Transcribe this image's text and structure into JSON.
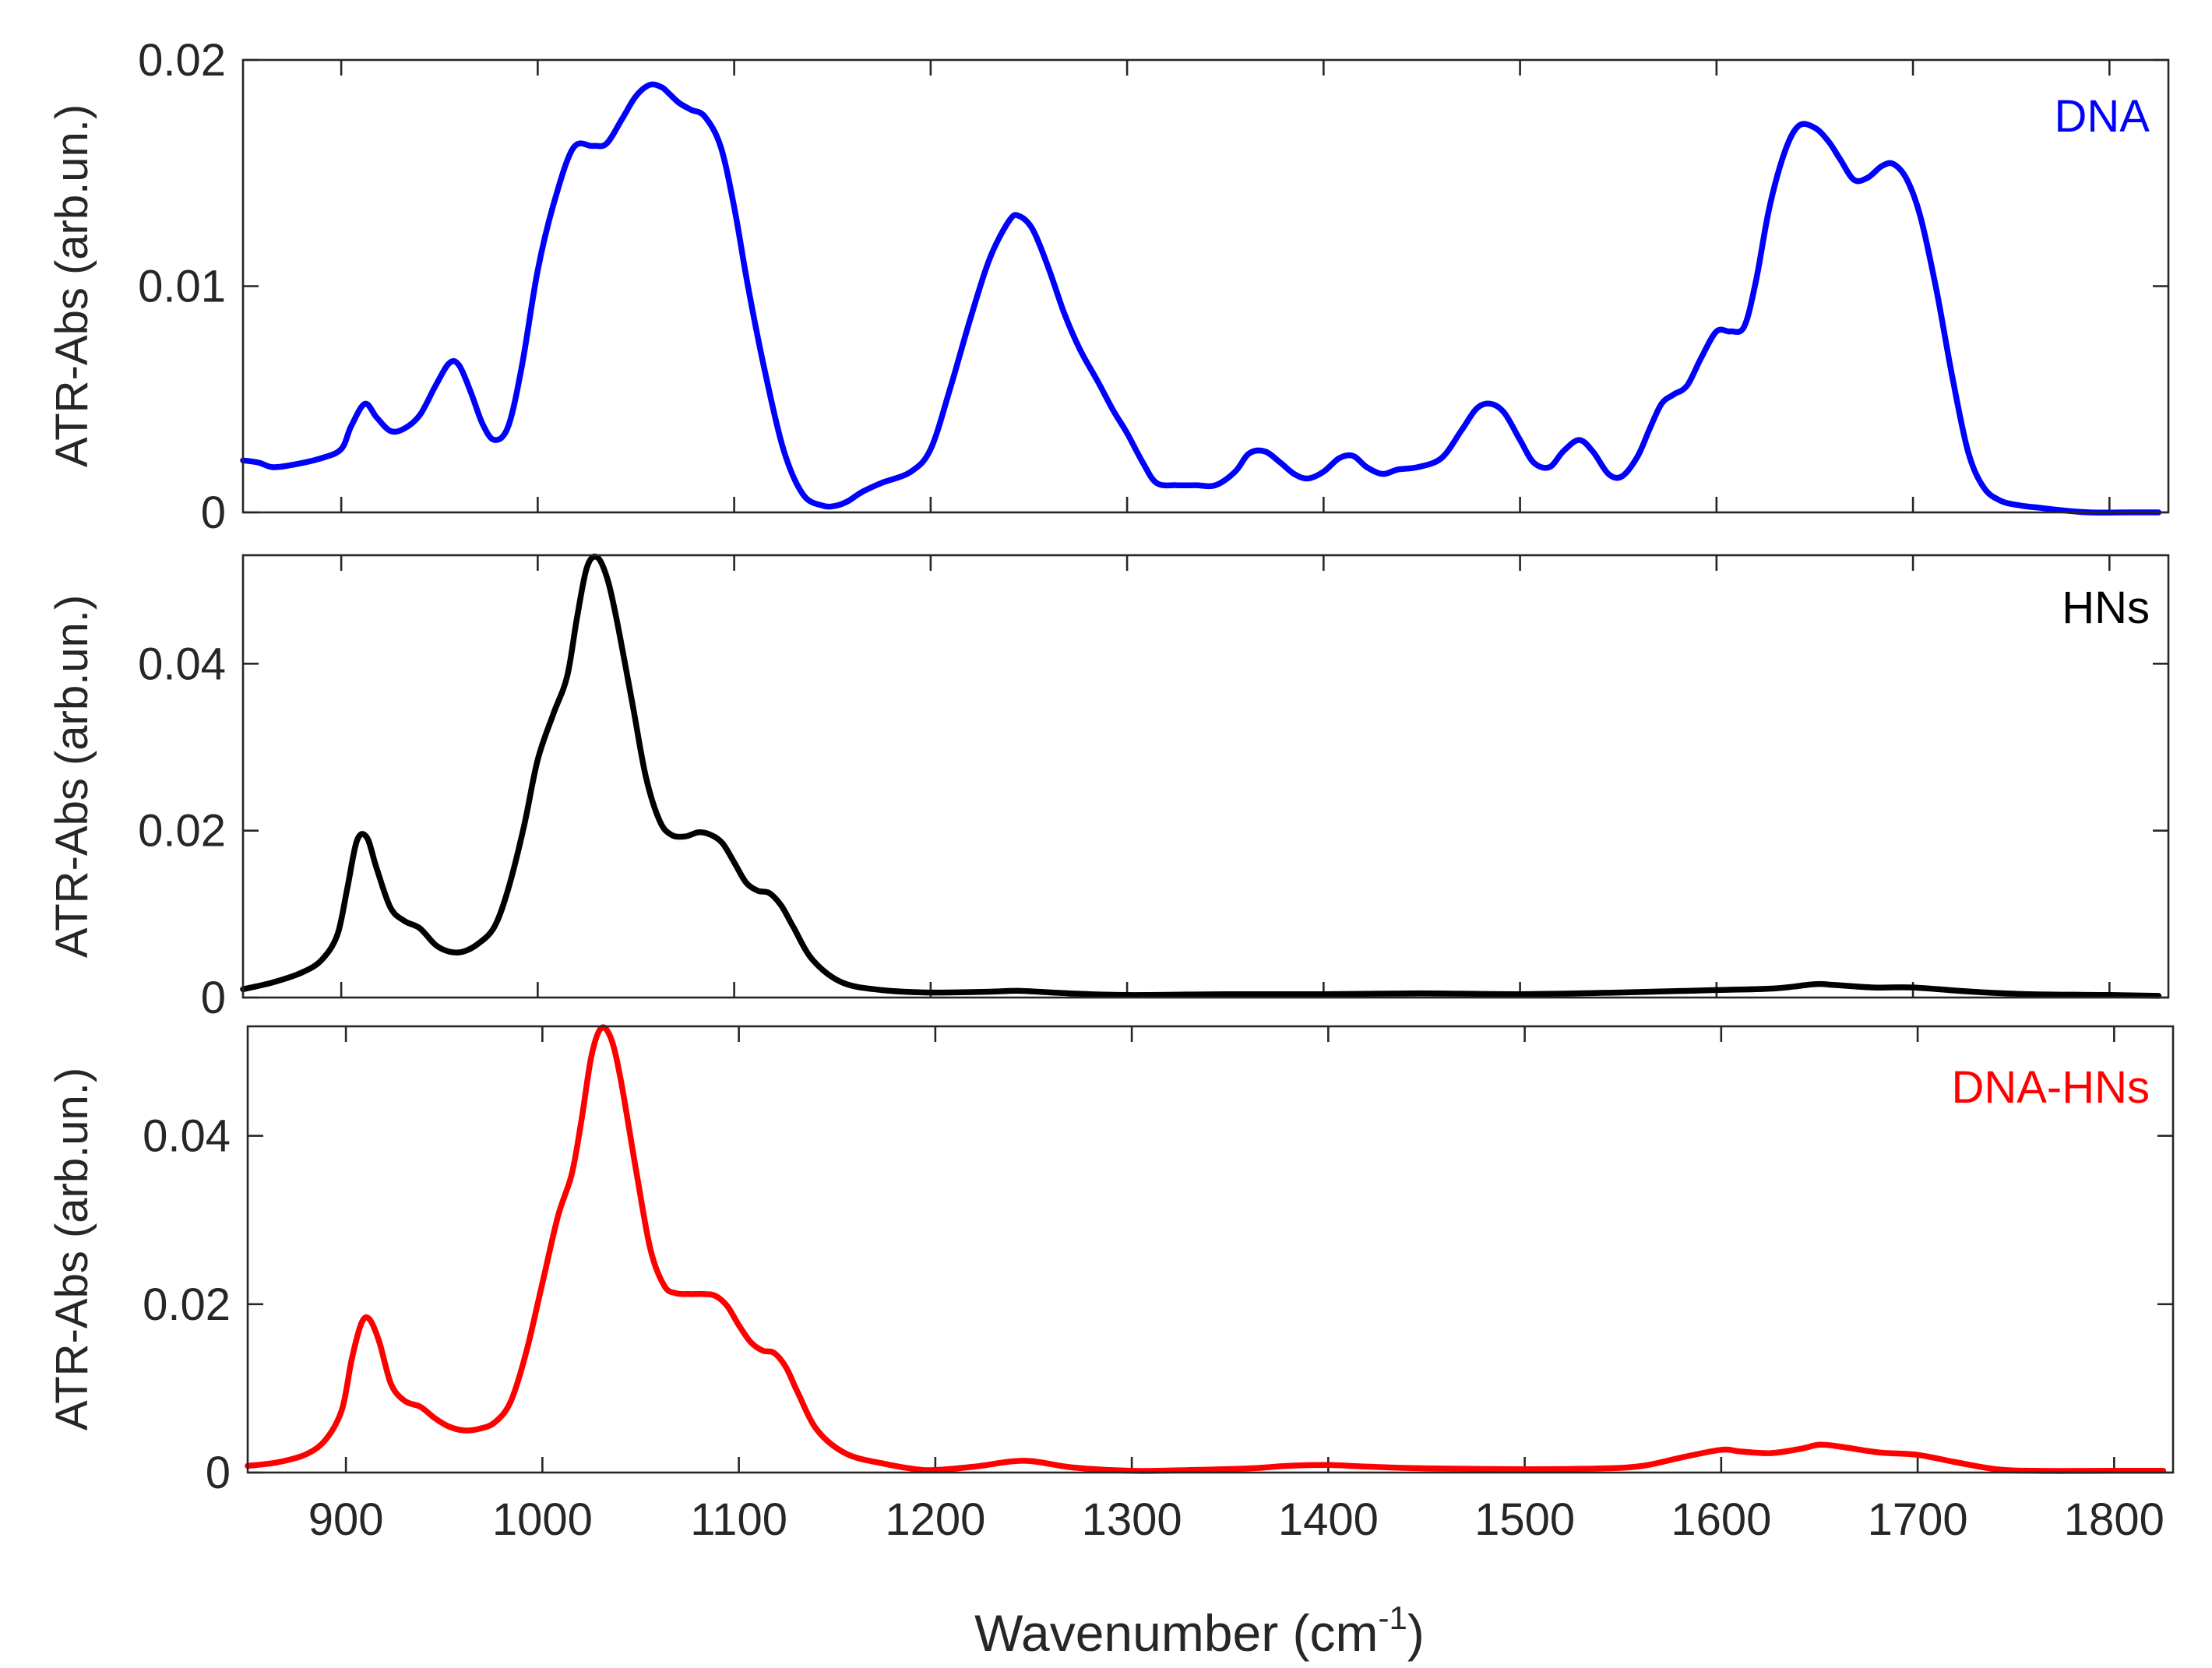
{
  "chart_data": {
    "type": "line",
    "layout": "3 vertically stacked panels sharing x-axis",
    "xlabel": "Wavenumber (cm",
    "xlabel_sup": "-1",
    "xlabel_close": ")",
    "xlim": [
      850,
      1830
    ],
    "xticks": [
      900,
      1000,
      1100,
      1200,
      1300,
      1400,
      1500,
      1600,
      1700,
      1800
    ],
    "xtick_labels": [
      "900",
      "1000",
      "1100",
      "1200",
      "1300",
      "1400",
      "1500",
      "1600",
      "1700",
      "1800"
    ],
    "panels": [
      {
        "name": "DNA",
        "legend": "DNA",
        "legend_placement": "top-right",
        "color": "#0000ff",
        "ylabel": "ATR-Abs (arb.un.)",
        "ylim": [
          0,
          0.02
        ],
        "yticks": [
          0,
          0.01,
          0.02
        ],
        "ytick_labels": [
          "0",
          "0.01",
          "0.02"
        ],
        "series": {
          "x": [
            850,
            858,
            865,
            875,
            890,
            900,
            905,
            912,
            918,
            925,
            932,
            940,
            948,
            955,
            960,
            966,
            972,
            978,
            985,
            992,
            1000,
            1008,
            1018,
            1028,
            1035,
            1043,
            1050,
            1057,
            1063,
            1067,
            1072,
            1078,
            1085,
            1093,
            1100,
            1107,
            1115,
            1125,
            1135,
            1145,
            1152,
            1158,
            1165,
            1175,
            1190,
            1200,
            1210,
            1220,
            1230,
            1240,
            1245,
            1252,
            1260,
            1268,
            1276,
            1285,
            1293,
            1300,
            1308,
            1315,
            1325,
            1335,
            1345,
            1355,
            1362,
            1370,
            1378,
            1385,
            1392,
            1400,
            1408,
            1415,
            1422,
            1430,
            1438,
            1448,
            1460,
            1470,
            1478,
            1485,
            1492,
            1500,
            1507,
            1515,
            1522,
            1530,
            1537,
            1545,
            1552,
            1560,
            1566,
            1572,
            1578,
            1585,
            1592,
            1600,
            1607,
            1614,
            1620,
            1627,
            1635,
            1642,
            1650,
            1657,
            1663,
            1670,
            1677,
            1684,
            1690,
            1697,
            1704,
            1712,
            1720,
            1728,
            1736,
            1745,
            1755,
            1765,
            1775,
            1790,
            1810,
            1825
          ],
          "y": [
            0.0023,
            0.0022,
            0.002,
            0.0021,
            0.0024,
            0.0028,
            0.0038,
            0.0048,
            0.0042,
            0.0036,
            0.0037,
            0.0043,
            0.0056,
            0.0066,
            0.0065,
            0.0053,
            0.0039,
            0.0032,
            0.0038,
            0.0065,
            0.0107,
            0.0136,
            0.0161,
            0.0162,
            0.0163,
            0.0174,
            0.0184,
            0.0189,
            0.0188,
            0.0185,
            0.0181,
            0.0178,
            0.0175,
            0.0162,
            0.0135,
            0.01,
            0.0065,
            0.0028,
            0.0008,
            0.0003,
            0.0003,
            0.0005,
            0.0009,
            0.0013,
            0.0018,
            0.0028,
            0.0055,
            0.0085,
            0.0112,
            0.0129,
            0.0131,
            0.0125,
            0.0108,
            0.0088,
            0.0072,
            0.0058,
            0.0045,
            0.0035,
            0.0022,
            0.0013,
            0.0012,
            0.0012,
            0.0012,
            0.0018,
            0.0026,
            0.0027,
            0.0022,
            0.0017,
            0.0015,
            0.0018,
            0.0024,
            0.0025,
            0.002,
            0.0017,
            0.0019,
            0.002,
            0.0024,
            0.0036,
            0.0046,
            0.0048,
            0.0044,
            0.0032,
            0.0022,
            0.002,
            0.0027,
            0.0032,
            0.0027,
            0.0017,
            0.0016,
            0.0025,
            0.0037,
            0.0048,
            0.0052,
            0.0056,
            0.0068,
            0.008,
            0.008,
            0.0082,
            0.0102,
            0.0135,
            0.016,
            0.0171,
            0.017,
            0.0164,
            0.0156,
            0.0147,
            0.0148,
            0.0153,
            0.0154,
            0.0147,
            0.013,
            0.0098,
            0.006,
            0.0027,
            0.0011,
            0.0005,
            0.0003,
            0.0002,
            0.0001,
            0.0,
            0.0,
            0.0
          ]
        }
      },
      {
        "name": "HNs",
        "legend": "HNs",
        "legend_placement": "top-right",
        "color": "#000000",
        "ylabel": "ATR-Abs (arb.un.)",
        "ylim": [
          0,
          0.053
        ],
        "yticks": [
          0,
          0.02,
          0.04
        ],
        "ytick_labels": [
          "0",
          "0.02",
          "0.04"
        ],
        "series": {
          "x": [
            850,
            865,
            880,
            890,
            898,
            903,
            908,
            913,
            918,
            925,
            932,
            940,
            948,
            955,
            962,
            970,
            978,
            985,
            993,
            1000,
            1008,
            1015,
            1020,
            1025,
            1030,
            1035,
            1040,
            1048,
            1055,
            1062,
            1068,
            1075,
            1082,
            1088,
            1094,
            1100,
            1106,
            1112,
            1118,
            1124,
            1130,
            1140,
            1155,
            1175,
            1200,
            1230,
            1245,
            1270,
            1300,
            1350,
            1400,
            1450,
            1500,
            1550,
            1600,
            1630,
            1650,
            1660,
            1680,
            1700,
            1730,
            1760,
            1800,
            1825
          ],
          "y": [
            0.001,
            0.0018,
            0.003,
            0.0045,
            0.0075,
            0.013,
            0.0188,
            0.0192,
            0.0155,
            0.0108,
            0.0092,
            0.0083,
            0.0063,
            0.0055,
            0.0055,
            0.0065,
            0.0085,
            0.013,
            0.0205,
            0.0285,
            0.034,
            0.0385,
            0.0455,
            0.0515,
            0.0528,
            0.0505,
            0.0455,
            0.0355,
            0.0265,
            0.0212,
            0.0195,
            0.0193,
            0.0198,
            0.0195,
            0.0185,
            0.0162,
            0.0138,
            0.0128,
            0.0125,
            0.011,
            0.0085,
            0.0045,
            0.0018,
            0.0009,
            0.0006,
            0.0007,
            0.0008,
            0.0005,
            0.0003,
            0.0004,
            0.0004,
            0.0005,
            0.0004,
            0.0006,
            0.0009,
            0.0011,
            0.0016,
            0.0015,
            0.0012,
            0.0012,
            0.0007,
            0.0004,
            0.0003,
            0.0002
          ]
        }
      },
      {
        "name": "DNA-HNs",
        "legend": "DNA-HNs",
        "legend_placement": "top-right",
        "color": "#ff0000",
        "ylabel": "ATR-Abs (arb.un.)",
        "ylim": [
          0,
          0.053
        ],
        "yticks": [
          0,
          0.02,
          0.04
        ],
        "ytick_labels": [
          "0",
          "0.02",
          "0.04"
        ],
        "series": {
          "x": [
            850,
            865,
            880,
            890,
            898,
            903,
            908,
            912,
            917,
            923,
            930,
            938,
            945,
            952,
            960,
            968,
            976,
            984,
            992,
            1000,
            1008,
            1015,
            1020,
            1025,
            1030,
            1035,
            1040,
            1048,
            1055,
            1062,
            1068,
            1075,
            1082,
            1088,
            1094,
            1100,
            1106,
            1112,
            1118,
            1124,
            1130,
            1140,
            1155,
            1175,
            1190,
            1200,
            1220,
            1245,
            1270,
            1300,
            1330,
            1360,
            1380,
            1400,
            1420,
            1450,
            1500,
            1540,
            1560,
            1580,
            1600,
            1610,
            1625,
            1640,
            1650,
            1660,
            1680,
            1700,
            1720,
            1740,
            1760,
            1800,
            1825
          ],
          "y": [
            0.0008,
            0.0012,
            0.0022,
            0.004,
            0.0075,
            0.0135,
            0.0178,
            0.0182,
            0.0155,
            0.0105,
            0.0085,
            0.0078,
            0.0065,
            0.0055,
            0.005,
            0.0052,
            0.006,
            0.0085,
            0.0145,
            0.0225,
            0.0305,
            0.0355,
            0.042,
            0.0495,
            0.0528,
            0.0515,
            0.0465,
            0.0355,
            0.0265,
            0.0222,
            0.0213,
            0.0212,
            0.0212,
            0.021,
            0.0198,
            0.0175,
            0.0155,
            0.0145,
            0.0142,
            0.0125,
            0.0095,
            0.005,
            0.0022,
            0.001,
            0.0004,
            0.0003,
            0.0007,
            0.0014,
            0.0006,
            0.0002,
            0.0003,
            0.0005,
            0.0008,
            0.0009,
            0.0007,
            0.0005,
            0.0004,
            0.0005,
            0.0008,
            0.0018,
            0.0027,
            0.0025,
            0.0023,
            0.0028,
            0.0033,
            0.0031,
            0.0024,
            0.0021,
            0.0012,
            0.0004,
            0.0002,
            0.0002,
            0.0002
          ]
        }
      }
    ]
  }
}
